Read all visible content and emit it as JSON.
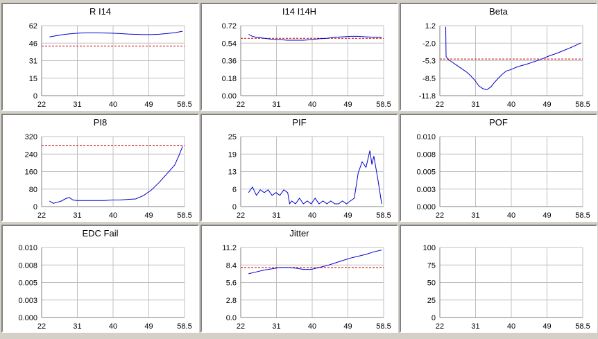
{
  "colors": {
    "series": "#0000cc",
    "reference": "#cc0000",
    "grid": "#c0c0c0",
    "background": "#d4d0c8"
  },
  "chart_data": [
    {
      "type": "line",
      "title": "R I14",
      "xticks": [
        "22",
        "31",
        "40",
        "49",
        "58.5"
      ],
      "yticks": [
        "0",
        "15",
        "31",
        "46",
        "62"
      ],
      "xlim": [
        22,
        58.5
      ],
      "ylim": [
        0,
        62
      ],
      "reference": 44,
      "series": [
        {
          "x": [
            24,
            26,
            28,
            30,
            32,
            34,
            36,
            38,
            40,
            42,
            44,
            46,
            48,
            50,
            52,
            54,
            56,
            58
          ],
          "values": [
            52,
            53.3,
            54.3,
            55,
            55.5,
            55.6,
            55.6,
            55.5,
            55.3,
            55,
            54.6,
            54.3,
            54.1,
            54.1,
            54.4,
            55,
            55.8,
            57
          ]
        }
      ]
    },
    {
      "type": "line",
      "title": "I14 I14H",
      "xticks": [
        "22",
        "31",
        "40",
        "49",
        "58.5"
      ],
      "yticks": [
        "0.00",
        "0.18",
        "0.36",
        "0.54",
        "0.72"
      ],
      "xlim": [
        22,
        58.5
      ],
      "ylim": [
        0,
        0.72
      ],
      "reference": 0.59,
      "series": [
        {
          "x": [
            24,
            25,
            26,
            28,
            30,
            32,
            34,
            36,
            38,
            40,
            42,
            44,
            46,
            48,
            50,
            52,
            54,
            56,
            58
          ],
          "values": [
            0.63,
            0.61,
            0.6,
            0.59,
            0.58,
            0.575,
            0.57,
            0.57,
            0.57,
            0.575,
            0.585,
            0.59,
            0.6,
            0.605,
            0.61,
            0.61,
            0.605,
            0.6,
            0.6
          ]
        }
      ]
    },
    {
      "type": "line",
      "title": "Beta",
      "xticks": [
        "22",
        "31",
        "40",
        "49",
        "58.5"
      ],
      "yticks": [
        "-11.8",
        "-8.5",
        "-5.3",
        "-2.0",
        "1.2"
      ],
      "xlim": [
        22,
        58.5
      ],
      "ylim": [
        -11.8,
        1.2
      ],
      "reference": -5.0,
      "series": [
        {
          "x": [
            23.5,
            23.6,
            24,
            25,
            26,
            27,
            28,
            29,
            30,
            31,
            32,
            33,
            34,
            35,
            36,
            37,
            38,
            39,
            40,
            42,
            44,
            46,
            48,
            50,
            52,
            54,
            56,
            58
          ],
          "values": [
            1.0,
            -4.5,
            -5,
            -5.5,
            -6.0,
            -6.5,
            -7.0,
            -7.5,
            -8.2,
            -9.0,
            -10.0,
            -10.5,
            -10.7,
            -10.2,
            -9.3,
            -8.5,
            -7.8,
            -7.2,
            -7.0,
            -6.4,
            -6.0,
            -5.5,
            -5.0,
            -4.4,
            -3.9,
            -3.3,
            -2.7,
            -2.0
          ]
        }
      ]
    },
    {
      "type": "line",
      "title": "PI8",
      "xticks": [
        "22",
        "31",
        "40",
        "49",
        "58.5"
      ],
      "yticks": [
        "0",
        "80",
        "160",
        "240",
        "320"
      ],
      "xlim": [
        22,
        58.5
      ],
      "ylim": [
        0,
        320
      ],
      "reference": 280,
      "series": [
        {
          "x": [
            24,
            25,
            26,
            27,
            28,
            29,
            30,
            31,
            32,
            34,
            36,
            38,
            40,
            42,
            44,
            46,
            48,
            50,
            52,
            54,
            56,
            57,
            58
          ],
          "values": [
            25,
            15,
            20,
            25,
            35,
            42,
            30,
            28,
            28,
            28,
            28,
            28,
            30,
            30,
            33,
            35,
            50,
            75,
            110,
            150,
            190,
            230,
            275
          ]
        }
      ]
    },
    {
      "type": "line",
      "title": "PIF",
      "xticks": [
        "22",
        "31",
        "40",
        "49",
        "58.5"
      ],
      "yticks": [
        "0",
        "6",
        "13",
        "19",
        "25"
      ],
      "xlim": [
        22,
        58.5
      ],
      "ylim": [
        0,
        25
      ],
      "reference": null,
      "series": [
        {
          "x": [
            24,
            25,
            26,
            27,
            28,
            29,
            30,
            31,
            32,
            33,
            34,
            34.5,
            35,
            36,
            37,
            38,
            39,
            40,
            41,
            42,
            43,
            44,
            45,
            46,
            47,
            48,
            49,
            50,
            51,
            52,
            53,
            54,
            55,
            55.5,
            56,
            57,
            58
          ],
          "values": [
            5,
            7,
            4,
            6,
            5,
            6,
            4,
            5,
            4,
            6,
            5,
            1,
            2,
            1,
            3,
            1,
            2,
            1,
            3,
            1,
            2,
            1,
            2,
            1,
            1,
            2,
            1,
            2,
            3,
            12,
            16,
            14,
            20,
            15,
            18,
            10,
            1
          ]
        }
      ]
    },
    {
      "type": "line",
      "title": "POF",
      "xticks": [
        "22",
        "31",
        "40",
        "49",
        "58.5"
      ],
      "yticks": [
        "0.000",
        "0.003",
        "0.005",
        "0.008",
        "0.010"
      ],
      "xlim": [
        22,
        58.5
      ],
      "ylim": [
        0,
        0.01
      ],
      "reference": null,
      "series": []
    },
    {
      "type": "line",
      "title": "EDC Fail",
      "xticks": [
        "22",
        "31",
        "40",
        "49",
        "58.5"
      ],
      "yticks": [
        "0.000",
        "0.003",
        "0.005",
        "0.008",
        "0.010"
      ],
      "xlim": [
        22,
        58.5
      ],
      "ylim": [
        0,
        0.01
      ],
      "reference": null,
      "series": []
    },
    {
      "type": "line",
      "title": "Jitter",
      "xticks": [
        "22",
        "31",
        "40",
        "49",
        "58.5"
      ],
      "yticks": [
        "0.0",
        "2.8",
        "5.6",
        "8.4",
        "11.2"
      ],
      "xlim": [
        22,
        58.5
      ],
      "ylim": [
        0,
        11.2
      ],
      "reference": 8.0,
      "series": [
        {
          "x": [
            24,
            26,
            28,
            30,
            32,
            34,
            36,
            38,
            40,
            42,
            44,
            46,
            48,
            50,
            52,
            54,
            56,
            58
          ],
          "values": [
            7.0,
            7.3,
            7.6,
            7.8,
            8.0,
            8.0,
            7.9,
            7.7,
            7.7,
            8.0,
            8.3,
            8.7,
            9.1,
            9.5,
            9.8,
            10.1,
            10.5,
            10.8
          ]
        }
      ]
    },
    {
      "type": "line",
      "title": "",
      "xticks": [
        "22",
        "31",
        "40",
        "49",
        "58.5"
      ],
      "yticks": [
        "0",
        "25",
        "50",
        "75",
        "100"
      ],
      "xlim": [
        22,
        58.5
      ],
      "ylim": [
        0,
        100
      ],
      "reference": null,
      "series": []
    }
  ]
}
